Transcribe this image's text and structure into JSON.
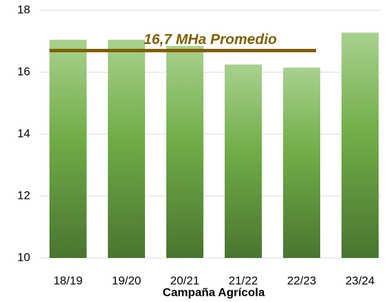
{
  "chart_data": {
    "type": "bar",
    "x_label": "Campaña Agrícola",
    "categories": [
      "18/19",
      "19/20",
      "20/21",
      "21/22",
      "22/23",
      "23/24"
    ],
    "values": [
      17.05,
      17.05,
      16.85,
      16.25,
      16.15,
      17.28
    ],
    "color": "#70ad47",
    "ylim": [
      10,
      18
    ],
    "yticks": [
      10,
      12,
      14,
      16,
      18
    ],
    "grid": true,
    "average": {
      "value": 16.7,
      "label": "16,7 MHa Promedio",
      "color": "#7f6000"
    }
  }
}
